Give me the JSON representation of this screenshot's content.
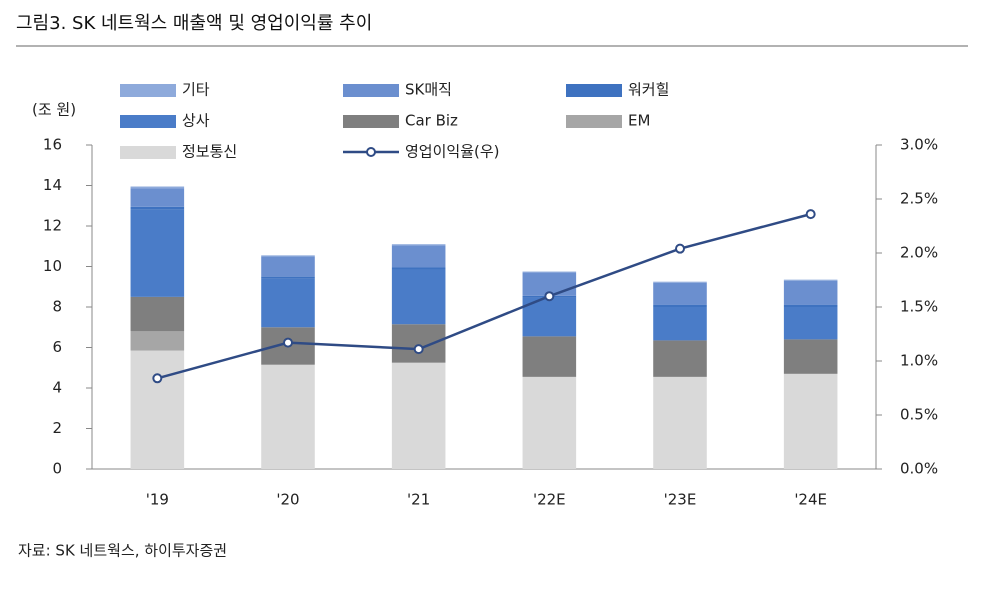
{
  "chart_data": {
    "type": "bar",
    "stacked": true,
    "title": "그림3.  SK 네트웍스 매출액 및 영업이익률 추이",
    "y_label": "(조 원)",
    "source": "자료: SK 네트웍스, 하이투자증권",
    "categories": [
      "'19",
      "'20",
      "'21",
      "'22E",
      "'23E",
      "'24E"
    ],
    "series": [
      {
        "name": "기타",
        "color": "#8eaadb",
        "values": [
          0.1,
          0.05,
          0.05,
          0.05,
          0.05,
          0.05
        ]
      },
      {
        "name": "SK매직",
        "color": "#6b8fcf",
        "values": [
          0.9,
          1.0,
          1.1,
          1.15,
          1.1,
          1.2
        ]
      },
      {
        "name": "워커힐",
        "color": "#3e72c0",
        "values": [
          0.15,
          0.1,
          0.1,
          0.1,
          0.1,
          0.1
        ]
      },
      {
        "name": "상사",
        "color": "#4a7cc8",
        "values": [
          4.3,
          2.4,
          2.7,
          1.9,
          1.65,
          1.6
        ]
      },
      {
        "name": "Car Biz",
        "color": "#7f7f7f",
        "values": [
          1.7,
          1.85,
          1.9,
          2.0,
          1.8,
          1.7
        ]
      },
      {
        "name": "EM",
        "color": "#a6a6a6",
        "values": [
          0.95,
          0.0,
          0.0,
          0.0,
          0.0,
          0.0
        ]
      },
      {
        "name": "정보통신",
        "color": "#d9d9d9",
        "values": [
          5.85,
          5.15,
          5.25,
          4.55,
          4.55,
          4.7
        ]
      },
      {
        "name": "영업이익율(우)",
        "color": "#2f4b85",
        "type": "line",
        "axis": "y2",
        "values": [
          0.84,
          1.17,
          1.11,
          1.6,
          2.04,
          2.36
        ]
      }
    ],
    "ylim": [
      0,
      16
    ],
    "yticks": [
      0,
      2,
      4,
      6,
      8,
      10,
      12,
      14,
      16
    ],
    "y2lim": [
      0,
      3
    ],
    "y2ticks": [
      {
        "value": 0,
        "label": "0.0%"
      },
      {
        "value": 0.5,
        "label": "0.5%"
      },
      {
        "value": 1,
        "label": "1.0%"
      },
      {
        "value": 1.5,
        "label": "1.5%"
      },
      {
        "value": 2,
        "label": "2.0%"
      },
      {
        "value": 2.5,
        "label": "2.5%"
      },
      {
        "value": 3,
        "label": "3.0%"
      }
    ]
  }
}
